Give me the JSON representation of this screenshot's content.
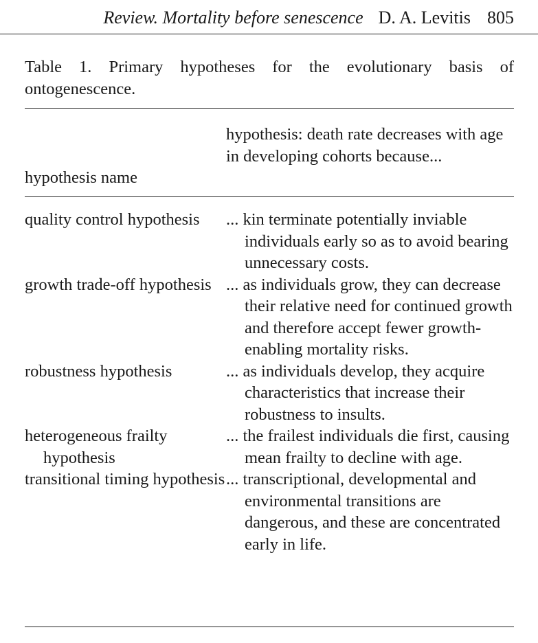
{
  "running_head": {
    "title": "Review. Mortality before senescence",
    "author": "D. A. Levitis",
    "page_number": "805"
  },
  "table": {
    "caption": "Table 1. Primary hypotheses for the evolutionary basis of ontogenescence.",
    "column_headers": {
      "name": "hypothesis name",
      "definition": "hypothesis: death rate decreases with age in developing cohorts because..."
    },
    "rows": [
      {
        "name": "quality control hypothesis",
        "definition": "... kin terminate potentially inviable individuals early so as to avoid bearing unnecessary costs."
      },
      {
        "name": "growth trade-off hypothesis",
        "definition": "... as individuals grow, they can decrease their relative need for continued growth and therefore accept fewer growth-enabling mortality risks."
      },
      {
        "name": "robustness hypothesis",
        "definition": "... as individuals develop, they acquire characteristics that increase their robustness to insults."
      },
      {
        "name": "heterogeneous frailty hypothesis",
        "definition": "... the frailest individuals die first, causing mean frailty to decline with age."
      },
      {
        "name": "transitional timing hypothesis",
        "definition": "... transcriptional, developmental and environmental transitions are dangerous, and these are concentrated early in life."
      }
    ]
  }
}
